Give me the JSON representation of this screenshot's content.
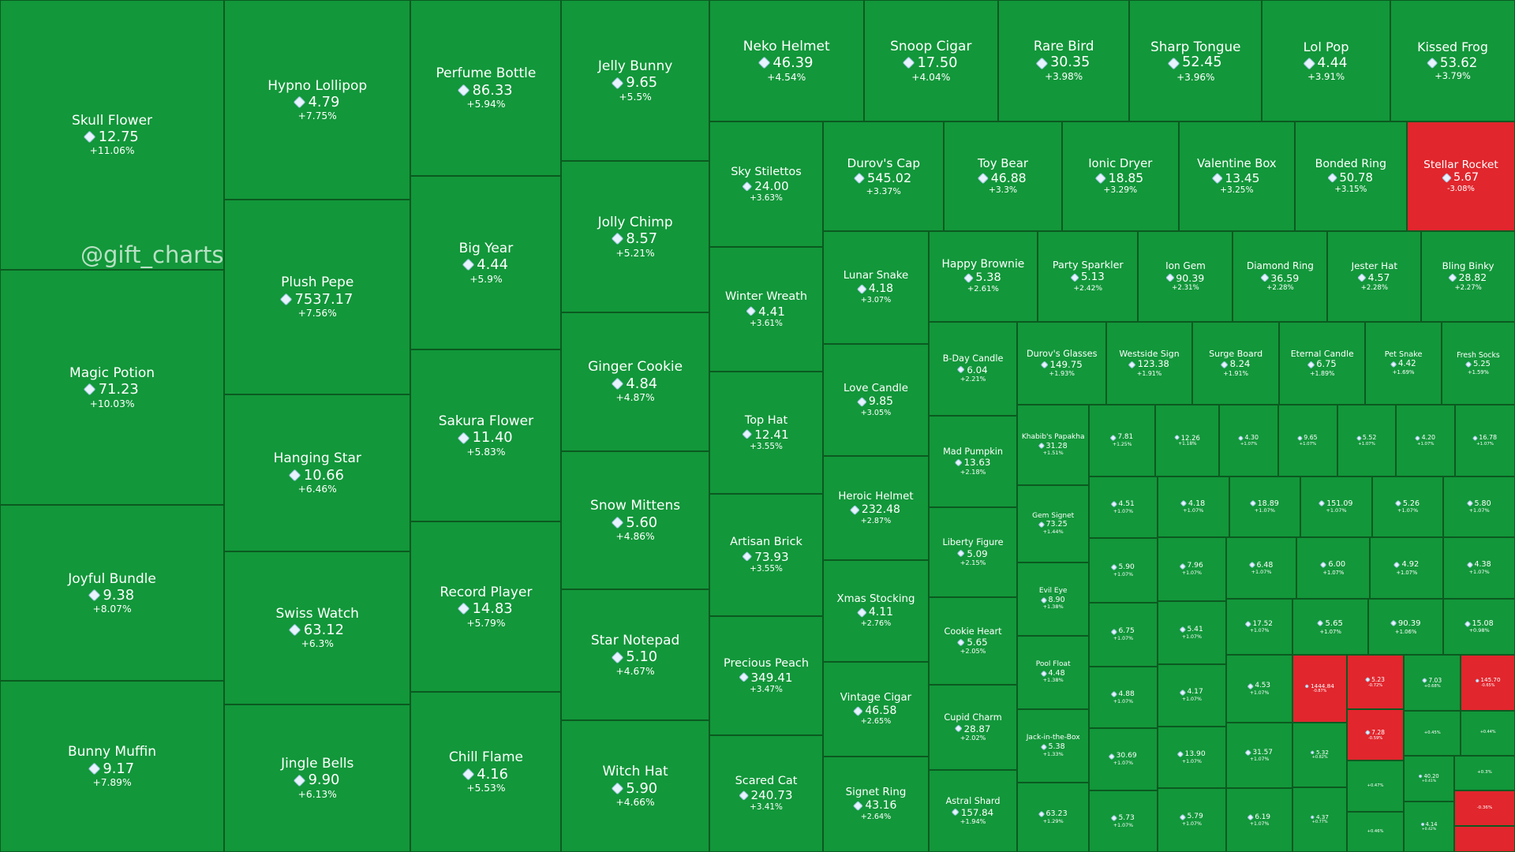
{
  "watermark": "@gift_charts",
  "tiles": [
    {
      "name": "Skull Flower",
      "price": "12.75",
      "change": "+11.06%"
    },
    {
      "name": "Magic Potion",
      "price": "71.23",
      "change": "+10.03%"
    },
    {
      "name": "Joyful Bundle",
      "price": "9.38",
      "change": "+8.07%"
    },
    {
      "name": "Bunny Muffin",
      "price": "9.17",
      "change": "+7.89%"
    },
    {
      "name": "Hypno Lollipop",
      "price": "4.79",
      "change": "+7.75%"
    },
    {
      "name": "Plush Pepe",
      "price": "7537.17",
      "change": "+7.56%"
    },
    {
      "name": "Hanging Star",
      "price": "10.66",
      "change": "+6.46%"
    },
    {
      "name": "Swiss Watch",
      "price": "63.12",
      "change": "+6.3%"
    },
    {
      "name": "Jingle Bells",
      "price": "9.90",
      "change": "+6.13%"
    },
    {
      "name": "Perfume Bottle",
      "price": "86.33",
      "change": "+5.94%"
    },
    {
      "name": "Big Year",
      "price": "4.44",
      "change": "+5.9%"
    },
    {
      "name": "Sakura Flower",
      "price": "11.40",
      "change": "+5.83%"
    },
    {
      "name": "Record Player",
      "price": "14.83",
      "change": "+5.79%"
    },
    {
      "name": "Chill Flame",
      "price": "4.16",
      "change": "+5.53%"
    },
    {
      "name": "Jelly Bunny",
      "price": "9.65",
      "change": "+5.5%"
    },
    {
      "name": "Jolly Chimp",
      "price": "8.57",
      "change": "+5.21%"
    },
    {
      "name": "Ginger Cookie",
      "price": "4.84",
      "change": "+4.87%"
    },
    {
      "name": "Snow Mittens",
      "price": "5.60",
      "change": "+4.86%"
    },
    {
      "name": "Star Notepad",
      "price": "5.10",
      "change": "+4.67%"
    },
    {
      "name": "Witch Hat",
      "price": "5.90",
      "change": "+4.66%"
    },
    {
      "name": "Neko Helmet",
      "price": "46.39",
      "change": "+4.54%"
    },
    {
      "name": "Snoop Cigar",
      "price": "17.50",
      "change": "+4.04%"
    },
    {
      "name": "Rare Bird",
      "price": "30.35",
      "change": "+3.98%"
    },
    {
      "name": "Sharp Tongue",
      "price": "52.45",
      "change": "+3.96%"
    },
    {
      "name": "Lol Pop",
      "price": "4.44",
      "change": "+3.91%"
    },
    {
      "name": "Kissed Frog",
      "price": "53.62",
      "change": "+3.79%"
    },
    {
      "name": "Sky Stilettos",
      "price": "24.00",
      "change": "+3.63%"
    },
    {
      "name": "Winter Wreath",
      "price": "4.41",
      "change": "+3.61%"
    },
    {
      "name": "Top Hat",
      "price": "12.41",
      "change": "+3.55%"
    },
    {
      "name": "Artisan Brick",
      "price": "73.93",
      "change": "+3.55%"
    },
    {
      "name": "Precious Peach",
      "price": "349.41",
      "change": "+3.47%"
    },
    {
      "name": "Scared Cat",
      "price": "240.73",
      "change": "+3.41%"
    },
    {
      "name": "Durov's Cap",
      "price": "545.02",
      "change": "+3.37%"
    },
    {
      "name": "Toy Bear",
      "price": "46.88",
      "change": "+3.3%"
    },
    {
      "name": "Ionic Dryer",
      "price": "18.85",
      "change": "+3.29%"
    },
    {
      "name": "Valentine Box",
      "price": "13.45",
      "change": "+3.25%"
    },
    {
      "name": "Bonded Ring",
      "price": "50.78",
      "change": "+3.15%"
    },
    {
      "name": "Stellar Rocket",
      "price": "5.67",
      "change": "-3.08%"
    },
    {
      "name": "Lunar Snake",
      "price": "4.18",
      "change": "+3.07%"
    },
    {
      "name": "Love Candle",
      "price": "9.85",
      "change": "+3.05%"
    },
    {
      "name": "Heroic Helmet",
      "price": "232.48",
      "change": "+2.87%"
    },
    {
      "name": "Xmas Stocking",
      "price": "4.11",
      "change": "+2.76%"
    },
    {
      "name": "Vintage Cigar",
      "price": "46.58",
      "change": "+2.65%"
    },
    {
      "name": "Signet Ring",
      "price": "43.16",
      "change": "+2.64%"
    },
    {
      "name": "Happy Brownie",
      "price": "5.38",
      "change": "+2.61%"
    },
    {
      "name": "Party Sparkler",
      "price": "5.13",
      "change": "+2.42%"
    },
    {
      "name": "Ion Gem",
      "price": "90.39",
      "change": "+2.31%"
    },
    {
      "name": "Diamond Ring",
      "price": "36.59",
      "change": "+2.28%"
    },
    {
      "name": "Jester Hat",
      "price": "4.57",
      "change": "+2.28%"
    },
    {
      "name": "Bling Binky",
      "price": "28.82",
      "change": "+2.27%"
    },
    {
      "name": "B-Day Candle",
      "price": "6.04",
      "change": "+2.21%"
    },
    {
      "name": "Mad Pumpkin",
      "price": "13.63",
      "change": "+2.18%"
    },
    {
      "name": "Liberty Figure",
      "price": "5.09",
      "change": "+2.15%"
    },
    {
      "name": "Cookie Heart",
      "price": "5.65",
      "change": "+2.05%"
    },
    {
      "name": "Cupid Charm",
      "price": "28.87",
      "change": "+2.02%"
    },
    {
      "name": "Astral Shard",
      "price": "157.84",
      "change": "+1.94%"
    },
    {
      "name": "Durov's Glasses",
      "price": "149.75",
      "change": "+1.93%"
    },
    {
      "name": "Westside Sign",
      "price": "123.38",
      "change": "+1.91%"
    },
    {
      "name": "Surge Board",
      "price": "8.24",
      "change": "+1.91%"
    },
    {
      "name": "Eternal Candle",
      "price": "6.75",
      "change": "+1.89%"
    },
    {
      "name": "Pet Snake",
      "price": "4.42",
      "change": "+1.69%"
    },
    {
      "name": "Fresh Socks",
      "price": "5.25",
      "change": "+1.59%"
    },
    {
      "name": "Khabib's Papakha",
      "price": "31.28",
      "change": "+1.51%"
    },
    {
      "name": "Gem Signet",
      "price": "73.25",
      "change": "+1.44%"
    },
    {
      "name": "Evil Eye",
      "price": "8.90",
      "change": "+1.38%"
    },
    {
      "name": "Pool Float",
      "price": "4.48",
      "change": "+1.38%"
    },
    {
      "name": "Jack-in-the-Box",
      "price": "5.38",
      "change": "+1.33%"
    },
    {
      "price": "63.23",
      "change": "+1.29%"
    },
    {
      "price": "7.81",
      "change": "+1.25%"
    },
    {
      "price": "12.26",
      "change": "+1.18%"
    },
    {
      "price": "4.30",
      "change": "+1.07%"
    },
    {
      "price": "9.65",
      "change": "+1.07%"
    },
    {
      "price": "5.52",
      "change": "+1.07%"
    },
    {
      "price": "4.20",
      "change": "+1.07%"
    },
    {
      "price": "16.78",
      "change": "+1.07%"
    },
    {
      "price": "4.51",
      "change": "+1.07%"
    },
    {
      "price": "4.18",
      "change": "+1.07%"
    },
    {
      "price": "18.89",
      "change": "+1.07%"
    },
    {
      "price": "151.09",
      "change": "+1.07%"
    },
    {
      "price": "5.26",
      "change": "+1.07%"
    },
    {
      "price": "5.80",
      "change": "+1.07%"
    },
    {
      "price": "5.90",
      "change": "+1.07%"
    },
    {
      "price": "6.75",
      "change": "+1.07%"
    },
    {
      "price": "4.88",
      "change": "+1.07%"
    },
    {
      "price": "30.69",
      "change": "+1.07%"
    },
    {
      "price": "5.73",
      "change": "+1.07%"
    },
    {
      "price": "7.96",
      "change": "+1.07%"
    },
    {
      "price": "5.41",
      "change": "+1.07%"
    },
    {
      "price": "4.17",
      "change": "+1.07%"
    },
    {
      "price": "13.90",
      "change": "+1.07%"
    },
    {
      "price": "5.79",
      "change": "+1.07%"
    },
    {
      "price": "6.48",
      "change": "+1.07%"
    },
    {
      "price": "6.00",
      "change": "+1.07%"
    },
    {
      "price": "4.92",
      "change": "+1.07%"
    },
    {
      "price": "4.38",
      "change": "+1.07%"
    },
    {
      "price": "17.52",
      "change": "+1.07%"
    },
    {
      "price": "5.65",
      "change": "+1.07%"
    },
    {
      "price": "90.39",
      "change": "+1.06%"
    },
    {
      "price": "15.08",
      "change": "+0.98%"
    },
    {
      "price": "4.53",
      "change": "+1.07%"
    },
    {
      "price": "31.57",
      "change": "+1.07%"
    },
    {
      "price": "6.19",
      "change": "+1.07%"
    },
    {
      "price": "1444.84",
      "change": "-0.87%"
    },
    {
      "price": "5.23",
      "change": "-0.72%"
    },
    {
      "price": "7.28",
      "change": "-0.59%"
    },
    {
      "price": "7.03",
      "change": "+0.68%"
    },
    {
      "price": "145.70",
      "change": "-0.65%"
    },
    {
      "price": "5.32",
      "change": "+0.82%"
    },
    {
      "price": "4.37",
      "change": "+0.77%"
    },
    {
      "change": "+0.47%"
    },
    {
      "change": "+0.46%"
    },
    {
      "change": "+0.45%"
    },
    {
      "change": "+0.44%"
    },
    {
      "price": "40.20",
      "change": "+0.41%"
    },
    {
      "change": "+0.3%"
    },
    {
      "change": "-0.36%"
    },
    {
      "price": "4.14",
      "change": "+0.42%"
    }
  ]
}
